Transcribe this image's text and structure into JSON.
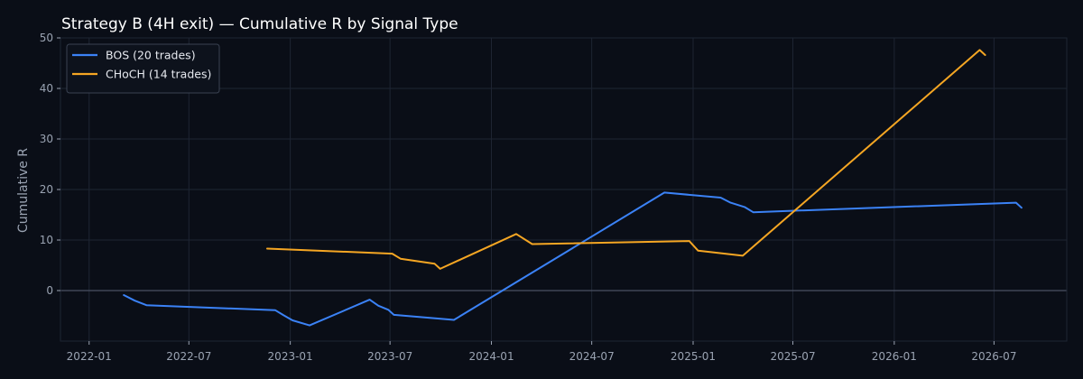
{
  "chart_data": {
    "type": "line",
    "title": "Strategy B (4H exit) — Cumulative R by Signal Type",
    "xlabel": "",
    "ylabel": "Cumulative R",
    "xlim": [
      "2021-11-10",
      "2026-11-10"
    ],
    "ylim": [
      -10,
      50
    ],
    "x_ticks": [
      "2022-01",
      "2022-07",
      "2023-01",
      "2023-07",
      "2024-01",
      "2024-07",
      "2025-01",
      "2025-07",
      "2026-01",
      "2026-07"
    ],
    "y_ticks": [
      0,
      10,
      20,
      30,
      40,
      50
    ],
    "grid": true,
    "zero_line": true,
    "legend_position": "top-left",
    "colors": {
      "background": "#0a0e17",
      "grid": "#1e2533",
      "zero_line": "#4a5263",
      "tick": "#9aa3b2"
    },
    "series": [
      {
        "name": "BOS (20 trades)",
        "color": "#3b82f6",
        "points": [
          [
            "2022-03-05",
            -0.9
          ],
          [
            "2022-03-25",
            -2.0
          ],
          [
            "2022-04-15",
            -2.9
          ],
          [
            "2022-12-05",
            -3.9
          ],
          [
            "2022-12-20",
            -4.9
          ],
          [
            "2023-01-05",
            -5.9
          ],
          [
            "2023-02-05",
            -6.9
          ],
          [
            "2023-05-25",
            -1.8
          ],
          [
            "2023-06-10",
            -3.0
          ],
          [
            "2023-06-28",
            -3.8
          ],
          [
            "2023-07-08",
            -4.8
          ],
          [
            "2023-10-25",
            -5.8
          ],
          [
            "2024-11-10",
            19.4
          ],
          [
            "2025-02-20",
            18.4
          ],
          [
            "2025-03-10",
            17.4
          ],
          [
            "2025-04-05",
            16.5
          ],
          [
            "2025-04-20",
            15.5
          ],
          [
            "2026-08-10",
            17.4
          ],
          [
            "2026-08-20",
            16.4
          ]
        ]
      },
      {
        "name": "CHoCH (14 trades)",
        "color": "#f5a623",
        "points": [
          [
            "2022-11-20",
            8.3
          ],
          [
            "2023-07-05",
            7.3
          ],
          [
            "2023-07-20",
            6.3
          ],
          [
            "2023-09-20",
            5.3
          ],
          [
            "2023-09-30",
            4.3
          ],
          [
            "2024-02-15",
            11.2
          ],
          [
            "2024-03-15",
            9.2
          ],
          [
            "2024-12-25",
            9.8
          ],
          [
            "2025-01-10",
            7.9
          ],
          [
            "2025-04-01",
            6.9
          ],
          [
            "2026-06-05",
            47.6
          ],
          [
            "2026-06-15",
            46.6
          ]
        ]
      }
    ]
  }
}
